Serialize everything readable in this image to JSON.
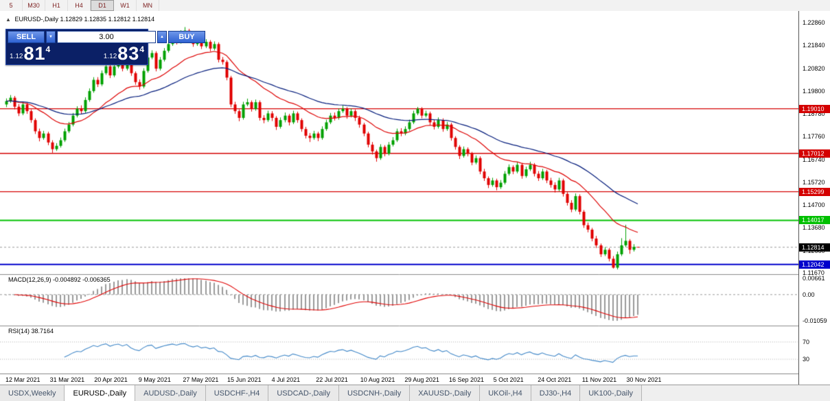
{
  "toolbar": {
    "timeframes": [
      {
        "label": "5",
        "active": false
      },
      {
        "label": "M30",
        "active": false
      },
      {
        "label": "H1",
        "active": false
      },
      {
        "label": "H4",
        "active": false
      },
      {
        "label": "D1",
        "active": true
      },
      {
        "label": "W1",
        "active": false
      },
      {
        "label": "MN",
        "active": false
      }
    ]
  },
  "chart_info": {
    "collapse_icon": "▲",
    "symbol_period": "EURUSD-,Daily",
    "open": "1.12829",
    "high": "1.12835",
    "low": "1.12812",
    "close": "1.12814"
  },
  "trade_panel": {
    "sell_label": "SELL",
    "buy_label": "BUY",
    "volume": "3.00",
    "sell_small": "1.12",
    "sell_big": "81",
    "sell_sup": "4",
    "buy_small": "1.12",
    "buy_big": "83",
    "buy_sup": "4"
  },
  "price_axis": {
    "max": 1.2286,
    "min": 1.1167,
    "labels": [
      "1.22860",
      "1.21840",
      "1.20820",
      "1.19800",
      "1.18780",
      "1.17760",
      "1.16740",
      "1.15720",
      "1.14700",
      "1.13680",
      "1.12660",
      "1.11670"
    ]
  },
  "hlines": [
    {
      "label": "1.19010",
      "value": 1.1901,
      "color": "#d40000",
      "width": 1.4
    },
    {
      "label": "1.17012",
      "value": 1.17012,
      "color": "#d40000",
      "width": 1.4
    },
    {
      "label": "1.15299",
      "value": 1.15299,
      "color": "#d40000",
      "width": 1.4
    },
    {
      "label": "1.14017",
      "value": 1.14017,
      "color": "#00c000",
      "width": 2
    },
    {
      "label": "1.12042",
      "value": 1.12042,
      "color": "#0000cc",
      "width": 2
    }
  ],
  "current_price": {
    "label": "1.12814",
    "value": 1.12814,
    "color": "#000000"
  },
  "indicators": {
    "macd": {
      "name": "MACD(12,26,9)",
      "value_main": "-0.004892",
      "value_signal": "-0.006365",
      "fast": 12,
      "slow": 26,
      "signal": 9,
      "axis_max": {
        "label": "0.00661",
        "value": 0.0066
      },
      "axis_zero": {
        "label": "0.00",
        "value": 0
      },
      "axis_min": {
        "label": "-0.01059",
        "value": -0.0106
      }
    },
    "rsi": {
      "name": "RSI(14)",
      "value": "38.7164",
      "period": 14,
      "levels": [
        {
          "label": "70",
          "value": 70
        },
        {
          "label": "30",
          "value": 30
        }
      ]
    }
  },
  "date_axis": [
    "12 Mar 2021",
    "31 Mar 2021",
    "20 Apr 2021",
    "9 May 2021",
    "27 May 2021",
    "15 Jun 2021",
    "4 Jul 2021",
    "22 Jul 2021",
    "10 Aug 2021",
    "29 Aug 2021",
    "16 Sep 2021",
    "5 Oct 2021",
    "24 Oct 2021",
    "11 Nov 2021",
    "30 Nov 2021"
  ],
  "tabs": [
    {
      "label": "USDX,Weekly",
      "active": false
    },
    {
      "label": "EURUSD-,Daily",
      "active": true
    },
    {
      "label": "AUDUSD-,Daily",
      "active": false
    },
    {
      "label": "USDCHF-,H4",
      "active": false
    },
    {
      "label": "USDCAD-,Daily",
      "active": false
    },
    {
      "label": "USDCNH-,Daily",
      "active": false
    },
    {
      "label": "XAUUSD-,Daily",
      "active": false
    },
    {
      "label": "UKOil-,H4",
      "active": false
    },
    {
      "label": "DJ30-,H4",
      "active": false
    },
    {
      "label": "UK100-,Daily",
      "active": false
    }
  ],
  "chart_data": {
    "type": "candlestick",
    "symbol": "EURUSD",
    "timeframe": "Daily",
    "colors": {
      "up": "#00a000",
      "down": "#e00000",
      "ma_fast": "#dd0000",
      "ma_slow": "#001a7a",
      "macd_bar": "#9a9a9a",
      "macd_signal": "#e00000",
      "rsi": "#3f86c7"
    },
    "moving_averages": [
      {
        "period": 20,
        "color": "#dd0000"
      },
      {
        "period": 45,
        "color": "#001a7a"
      }
    ],
    "candles": [
      [
        1.192,
        1.1947,
        1.1908,
        1.1935
      ],
      [
        1.1935,
        1.1962,
        1.1927,
        1.195
      ],
      [
        1.195,
        1.1958,
        1.1898,
        1.191
      ],
      [
        1.191,
        1.1922,
        1.1868,
        1.188
      ],
      [
        1.188,
        1.1932,
        1.1872,
        1.192
      ],
      [
        1.192,
        1.1928,
        1.1878,
        1.189
      ],
      [
        1.189,
        1.1898,
        1.1838,
        1.185
      ],
      [
        1.185,
        1.1858,
        1.1788,
        1.18
      ],
      [
        1.18,
        1.1812,
        1.1755,
        1.177
      ],
      [
        1.177,
        1.1802,
        1.1762,
        1.179
      ],
      [
        1.179,
        1.1798,
        1.1738,
        1.175
      ],
      [
        1.175,
        1.176,
        1.1704,
        1.172
      ],
      [
        1.172,
        1.1747,
        1.1712,
        1.1735
      ],
      [
        1.1735,
        1.1772,
        1.1727,
        1.176
      ],
      [
        1.176,
        1.1812,
        1.1752,
        1.18
      ],
      [
        1.18,
        1.1842,
        1.1792,
        1.183
      ],
      [
        1.183,
        1.1882,
        1.1822,
        1.187
      ],
      [
        1.187,
        1.1912,
        1.1862,
        1.19
      ],
      [
        1.19,
        1.1916,
        1.1878,
        1.189
      ],
      [
        1.189,
        1.1952,
        1.1882,
        1.194
      ],
      [
        1.194,
        1.1992,
        1.1932,
        1.198
      ],
      [
        1.198,
        1.2042,
        1.1972,
        1.203
      ],
      [
        1.203,
        1.2042,
        1.1998,
        1.201
      ],
      [
        1.201,
        1.2072,
        1.2002,
        1.206
      ],
      [
        1.206,
        1.2102,
        1.2052,
        1.209
      ],
      [
        1.209,
        1.2098,
        1.2038,
        1.205
      ],
      [
        1.205,
        1.2102,
        1.2042,
        1.209
      ],
      [
        1.209,
        1.2122,
        1.2082,
        1.211
      ],
      [
        1.211,
        1.2118,
        1.2068,
        1.208
      ],
      [
        1.208,
        1.2132,
        1.2072,
        1.212
      ],
      [
        1.212,
        1.2128,
        1.2048,
        1.206
      ],
      [
        1.206,
        1.2068,
        1.2008,
        1.202
      ],
      [
        1.202,
        1.2032,
        1.1986,
        1.2
      ],
      [
        1.2,
        1.2082,
        1.1992,
        1.207
      ],
      [
        1.207,
        1.2142,
        1.2062,
        1.213
      ],
      [
        1.213,
        1.2162,
        1.2122,
        1.215
      ],
      [
        1.215,
        1.2158,
        1.2068,
        1.208
      ],
      [
        1.208,
        1.2132,
        1.2072,
        1.212
      ],
      [
        1.212,
        1.2172,
        1.2112,
        1.216
      ],
      [
        1.216,
        1.2202,
        1.2152,
        1.219
      ],
      [
        1.219,
        1.2232,
        1.2182,
        1.222
      ],
      [
        1.222,
        1.2228,
        1.2188,
        1.22
      ],
      [
        1.22,
        1.2252,
        1.2192,
        1.224
      ],
      [
        1.224,
        1.2266,
        1.2232,
        1.225
      ],
      [
        1.225,
        1.2258,
        1.2198,
        1.221
      ],
      [
        1.221,
        1.2222,
        1.2178,
        1.219
      ],
      [
        1.219,
        1.2232,
        1.2182,
        1.222
      ],
      [
        1.222,
        1.2228,
        1.2168,
        1.218
      ],
      [
        1.218,
        1.2212,
        1.2172,
        1.22
      ],
      [
        1.22,
        1.2208,
        1.2158,
        1.217
      ],
      [
        1.217,
        1.2202,
        1.2162,
        1.219
      ],
      [
        1.219,
        1.2198,
        1.2108,
        1.212
      ],
      [
        1.212,
        1.2132,
        1.2098,
        1.211
      ],
      [
        1.211,
        1.2118,
        1.2028,
        1.204
      ],
      [
        1.204,
        1.2048,
        1.1908,
        1.192
      ],
      [
        1.192,
        1.1932,
        1.1878,
        1.189
      ],
      [
        1.189,
        1.1898,
        1.1845,
        1.186
      ],
      [
        1.186,
        1.1932,
        1.1852,
        1.192
      ],
      [
        1.192,
        1.1946,
        1.1912,
        1.193
      ],
      [
        1.193,
        1.1938,
        1.1888,
        1.19
      ],
      [
        1.19,
        1.1942,
        1.1892,
        1.193
      ],
      [
        1.193,
        1.1938,
        1.1848,
        1.186
      ],
      [
        1.186,
        1.1872,
        1.1836,
        1.185
      ],
      [
        1.185,
        1.1892,
        1.1842,
        1.188
      ],
      [
        1.188,
        1.189,
        1.1846,
        1.186
      ],
      [
        1.186,
        1.1868,
        1.1806,
        1.182
      ],
      [
        1.182,
        1.1862,
        1.1812,
        1.185
      ],
      [
        1.185,
        1.1884,
        1.184,
        1.187
      ],
      [
        1.187,
        1.1878,
        1.1826,
        1.184
      ],
      [
        1.184,
        1.1892,
        1.1832,
        1.188
      ],
      [
        1.188,
        1.1888,
        1.1838,
        1.185
      ],
      [
        1.185,
        1.1858,
        1.1798,
        1.181
      ],
      [
        1.181,
        1.182,
        1.1768,
        1.178
      ],
      [
        1.178,
        1.1792,
        1.1752,
        1.177
      ],
      [
        1.177,
        1.1802,
        1.1762,
        1.179
      ],
      [
        1.179,
        1.1798,
        1.1756,
        1.177
      ],
      [
        1.177,
        1.1822,
        1.1762,
        1.181
      ],
      [
        1.181,
        1.1852,
        1.1802,
        1.184
      ],
      [
        1.184,
        1.1882,
        1.1832,
        1.187
      ],
      [
        1.187,
        1.1884,
        1.1848,
        1.186
      ],
      [
        1.186,
        1.1902,
        1.1852,
        1.189
      ],
      [
        1.189,
        1.1916,
        1.1882,
        1.19
      ],
      [
        1.19,
        1.1908,
        1.1856,
        1.187
      ],
      [
        1.187,
        1.1902,
        1.1862,
        1.189
      ],
      [
        1.189,
        1.1898,
        1.1846,
        1.186
      ],
      [
        1.186,
        1.187,
        1.1816,
        1.183
      ],
      [
        1.183,
        1.1838,
        1.1778,
        1.179
      ],
      [
        1.179,
        1.1798,
        1.1728,
        1.174
      ],
      [
        1.174,
        1.1752,
        1.1696,
        1.171
      ],
      [
        1.171,
        1.1718,
        1.1664,
        1.168
      ],
      [
        1.168,
        1.1742,
        1.1672,
        1.173
      ],
      [
        1.173,
        1.1738,
        1.1688,
        1.17
      ],
      [
        1.17,
        1.1752,
        1.1692,
        1.174
      ],
      [
        1.174,
        1.1774,
        1.1732,
        1.176
      ],
      [
        1.176,
        1.1812,
        1.1752,
        1.18
      ],
      [
        1.18,
        1.1814,
        1.1778,
        1.179
      ],
      [
        1.179,
        1.1822,
        1.1782,
        1.181
      ],
      [
        1.181,
        1.1852,
        1.1802,
        1.184
      ],
      [
        1.184,
        1.1892,
        1.1832,
        1.188
      ],
      [
        1.188,
        1.1909,
        1.1872,
        1.19
      ],
      [
        1.19,
        1.1908,
        1.1858,
        1.187
      ],
      [
        1.187,
        1.1892,
        1.1862,
        1.188
      ],
      [
        1.188,
        1.1888,
        1.1828,
        1.184
      ],
      [
        1.184,
        1.1852,
        1.1808,
        1.182
      ],
      [
        1.182,
        1.1862,
        1.1812,
        1.185
      ],
      [
        1.185,
        1.1858,
        1.1798,
        1.181
      ],
      [
        1.181,
        1.1842,
        1.1802,
        1.183
      ],
      [
        1.183,
        1.1838,
        1.1758,
        1.177
      ],
      [
        1.177,
        1.1778,
        1.1718,
        1.173
      ],
      [
        1.173,
        1.1738,
        1.1676,
        1.169
      ],
      [
        1.169,
        1.1732,
        1.1682,
        1.172
      ],
      [
        1.172,
        1.1728,
        1.1688,
        1.17
      ],
      [
        1.17,
        1.1708,
        1.1648,
        1.166
      ],
      [
        1.166,
        1.1692,
        1.1652,
        1.168
      ],
      [
        1.168,
        1.1688,
        1.1608,
        1.162
      ],
      [
        1.162,
        1.1632,
        1.1578,
        1.159
      ],
      [
        1.159,
        1.1598,
        1.1546,
        1.156
      ],
      [
        1.156,
        1.1592,
        1.1552,
        1.158
      ],
      [
        1.158,
        1.1588,
        1.1536,
        1.155
      ],
      [
        1.155,
        1.1582,
        1.1542,
        1.157
      ],
      [
        1.157,
        1.1622,
        1.1562,
        1.161
      ],
      [
        1.161,
        1.1652,
        1.1602,
        1.164
      ],
      [
        1.164,
        1.1648,
        1.1608,
        1.162
      ],
      [
        1.162,
        1.1662,
        1.1612,
        1.165
      ],
      [
        1.165,
        1.1658,
        1.1588,
        1.16
      ],
      [
        1.16,
        1.1642,
        1.1592,
        1.163
      ],
      [
        1.163,
        1.1664,
        1.1622,
        1.165
      ],
      [
        1.165,
        1.1658,
        1.1598,
        1.161
      ],
      [
        1.161,
        1.1622,
        1.1578,
        1.159
      ],
      [
        1.159,
        1.1632,
        1.1582,
        1.162
      ],
      [
        1.162,
        1.1628,
        1.1568,
        1.158
      ],
      [
        1.158,
        1.1592,
        1.1548,
        1.156
      ],
      [
        1.156,
        1.1572,
        1.1526,
        1.154
      ],
      [
        1.154,
        1.1592,
        1.1532,
        1.158
      ],
      [
        1.158,
        1.1588,
        1.1508,
        1.152
      ],
      [
        1.152,
        1.1528,
        1.1468,
        1.148
      ],
      [
        1.148,
        1.1492,
        1.1438,
        1.145
      ],
      [
        1.145,
        1.1522,
        1.1442,
        1.151
      ],
      [
        1.151,
        1.1518,
        1.1428,
        1.144
      ],
      [
        1.144,
        1.1448,
        1.1368,
        1.138
      ],
      [
        1.138,
        1.1392,
        1.1348,
        1.136
      ],
      [
        1.136,
        1.1368,
        1.1308,
        1.132
      ],
      [
        1.132,
        1.1332,
        1.1278,
        1.129
      ],
      [
        1.129,
        1.1298,
        1.1238,
        1.125
      ],
      [
        1.125,
        1.1282,
        1.1242,
        1.127
      ],
      [
        1.127,
        1.1278,
        1.1218,
        1.123
      ],
      [
        1.123,
        1.1242,
        1.1186,
        1.119
      ],
      [
        1.119,
        1.1262,
        1.1182,
        1.125
      ],
      [
        1.125,
        1.1322,
        1.1242,
        1.129
      ],
      [
        1.129,
        1.1382,
        1.1282,
        1.131
      ],
      [
        1.131,
        1.1318,
        1.1252,
        1.127
      ],
      [
        1.127,
        1.1295,
        1.1262,
        1.1283
      ],
      [
        1.12829,
        1.12835,
        1.12812,
        1.12814
      ]
    ]
  }
}
